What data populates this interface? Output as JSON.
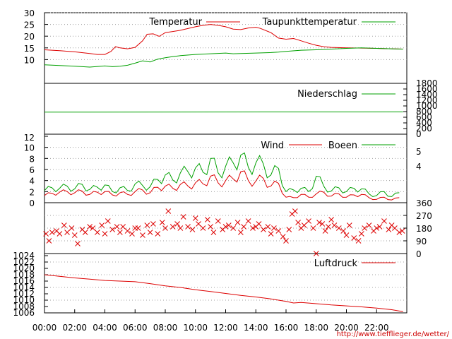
{
  "credit": "http://www.tiefflieger.de/wetter/",
  "time_labels": [
    "00:00",
    "02:00",
    "04:00",
    "06:00",
    "08:00",
    "10:00",
    "12:00",
    "14:00",
    "16:00",
    "18:00",
    "20:00",
    "22:00"
  ],
  "colors": {
    "red": "#dd0000",
    "green": "#00a000",
    "frame": "#000000",
    "grid": "#a0a0a0"
  },
  "chart_data": [
    {
      "id": "temperature",
      "type": "line",
      "x_unit": "hours",
      "ylim": [
        5,
        30
      ],
      "yticks": [
        "10",
        "15",
        "20",
        "25",
        "30"
      ],
      "grid": true,
      "legend_placement": "top",
      "series": [
        {
          "name": "Temperatur",
          "color": "#dd0000",
          "x": [
            0,
            1,
            2,
            3,
            3.5,
            4,
            4.4,
            4.7,
            5,
            5.5,
            6,
            6.5,
            6.8,
            7.2,
            7.6,
            8,
            9,
            10,
            10.5,
            11,
            11.5,
            12,
            12.5,
            13,
            13.5,
            14,
            14.3,
            15,
            15.5,
            16,
            16.5,
            17,
            17.5,
            18,
            18.5,
            19,
            20,
            21,
            22,
            23,
            23.75
          ],
          "y": [
            14.2,
            13.8,
            13.3,
            12.6,
            12.2,
            12.2,
            13.5,
            15.5,
            15.0,
            14.6,
            15.2,
            18.0,
            20.8,
            21.0,
            19.9,
            21.5,
            22.5,
            24.0,
            24.6,
            25.0,
            24.6,
            24.0,
            23.0,
            22.8,
            23.5,
            23.8,
            23.3,
            21.5,
            19.2,
            18.7,
            19.0,
            18.0,
            17.0,
            16.1,
            15.5,
            15.2,
            15.0,
            14.9,
            14.8,
            14.6,
            14.5
          ]
        },
        {
          "name": "Taupunkttemperatur",
          "color": "#00a000",
          "x": [
            0,
            1,
            2,
            3,
            4,
            4.5,
            5,
            5.5,
            6,
            6.5,
            7,
            7.5,
            8,
            8.5,
            9,
            10,
            11,
            12,
            12.5,
            13,
            14,
            15,
            15.5,
            16,
            17,
            18,
            19,
            20,
            21,
            22,
            23,
            23.75
          ],
          "y": [
            7.8,
            7.5,
            7.2,
            6.8,
            7.3,
            7.0,
            7.2,
            7.6,
            8.5,
            9.5,
            9.0,
            10.2,
            10.8,
            11.3,
            11.7,
            12.2,
            12.5,
            12.8,
            12.5,
            12.6,
            12.8,
            13.0,
            13.2,
            13.5,
            14.0,
            14.2,
            14.5,
            14.8,
            15.0,
            14.8,
            14.6,
            14.5
          ]
        }
      ]
    },
    {
      "id": "precipitation",
      "type": "line",
      "x_unit": "hours",
      "ylim": [
        0,
        1800
      ],
      "right_ticks": [
        "0",
        "200",
        "400",
        "600",
        "800",
        "1000",
        "1200",
        "1400",
        "1600",
        "1800"
      ],
      "legend_placement": "top-right",
      "series": [
        {
          "name": "Niederschlag",
          "color": "#00a000",
          "x": [
            0,
            23.75
          ],
          "y": [
            780,
            790
          ]
        }
      ]
    },
    {
      "id": "wind",
      "type": "line",
      "x_unit": "hours",
      "ylim": [
        0,
        12
      ],
      "yticks": [
        "0",
        "2",
        "4",
        "6",
        "8",
        "10",
        "12"
      ],
      "right_ticks": [
        "4",
        "5"
      ],
      "grid": true,
      "legend_placement": "top-right",
      "series": [
        {
          "name": "Wind",
          "color": "#dd0000",
          "x": [
            0,
            0.5,
            1,
            1.5,
            2,
            2.5,
            3,
            3.5,
            4,
            4.5,
            5,
            5.5,
            6,
            6.5,
            7,
            7.5,
            8,
            8.5,
            9,
            9.5,
            10,
            10.5,
            11,
            11.5,
            12,
            12.5,
            13,
            13.5,
            14,
            14.5,
            15,
            15.5,
            16,
            16.5,
            17,
            17.5,
            18,
            18.5,
            19,
            19.5,
            20,
            20.5,
            21,
            21.5,
            22,
            22.5,
            23,
            23.5
          ],
          "y": [
            1.3,
            1.7,
            1.9,
            2.0,
            1.8,
            2.1,
            1.5,
            1.9,
            2.0,
            1.4,
            1.8,
            1.5,
            2.0,
            2.3,
            1.8,
            2.8,
            3.0,
            2.6,
            3.3,
            3.0,
            3.6,
            3.4,
            4.8,
            3.6,
            4.0,
            4.3,
            5.6,
            4.0,
            3.9,
            4.4,
            3.0,
            3.5,
            1.0,
            0.9,
            1.5,
            1.0,
            1.6,
            1.9,
            1.2,
            1.6,
            1.0,
            1.4,
            1.5,
            0.9,
            0.6,
            1.0,
            0.5,
            0.9
          ]
        },
        {
          "name": "Boeen",
          "color": "#00a000",
          "x": [
            0,
            0.5,
            1,
            1.5,
            2,
            2.5,
            3,
            3.5,
            4,
            4.5,
            5,
            5.5,
            6,
            6.5,
            7,
            7.5,
            8,
            8.5,
            9,
            9.5,
            10,
            10.5,
            11,
            11.5,
            12,
            12.5,
            13,
            13.5,
            14,
            14.5,
            15,
            15.5,
            16,
            16.5,
            17,
            17.5,
            18,
            18.5,
            19,
            19.5,
            20,
            20.5,
            21,
            21.5,
            22,
            22.5,
            23,
            23.5
          ],
          "y": [
            2.2,
            2.7,
            2.6,
            3.0,
            2.5,
            3.3,
            2.4,
            2.8,
            3.2,
            2.0,
            2.7,
            2.2,
            3.4,
            3.1,
            2.9,
            4.2,
            5.0,
            4.1,
            5.4,
            5.6,
            6.3,
            5.5,
            8.0,
            5.4,
            6.6,
            7.2,
            8.6,
            6.4,
            7.2,
            7.0,
            5.0,
            6.2,
            2.0,
            2.3,
            2.6,
            2.0,
            4.8,
            3.0,
            2.1,
            2.7,
            2.0,
            2.6,
            2.5,
            1.6,
            1.3,
            2.0,
            1.1,
            1.8
          ]
        }
      ]
    },
    {
      "id": "wind_direction",
      "type": "scatter",
      "x_unit": "hours",
      "ylim": [
        0,
        360
      ],
      "right_ticks": [
        "0",
        "90",
        "180",
        "270",
        "360"
      ],
      "series": [
        {
          "color": "#dd0000",
          "x": [
            0.1,
            0.3,
            0.5,
            0.8,
            1.0,
            1.3,
            1.5,
            1.8,
            2.0,
            2.2,
            2.5,
            2.7,
            3.0,
            3.2,
            3.5,
            3.8,
            4.0,
            4.2,
            4.5,
            4.8,
            5.0,
            5.2,
            5.5,
            5.8,
            6.0,
            6.2,
            6.5,
            6.8,
            7.0,
            7.2,
            7.5,
            7.8,
            8.0,
            8.2,
            8.5,
            8.8,
            9.0,
            9.2,
            9.5,
            9.8,
            10.0,
            10.2,
            10.5,
            10.8,
            11.0,
            11.2,
            11.5,
            11.8,
            12.0,
            12.2,
            12.5,
            12.8,
            13.0,
            13.2,
            13.5,
            13.8,
            14.0,
            14.2,
            14.5,
            14.8,
            15.0,
            15.2,
            15.5,
            15.8,
            16.0,
            16.2,
            16.4,
            16.6,
            16.8,
            17.0,
            17.2,
            17.5,
            17.8,
            18.0,
            18.2,
            18.4,
            18.6,
            18.8,
            19.0,
            19.2,
            19.5,
            19.8,
            20.0,
            20.2,
            20.5,
            20.8,
            21.0,
            21.2,
            21.5,
            21.8,
            22.0,
            22.2,
            22.5,
            22.8,
            23.0,
            23.2,
            23.5,
            23.7
          ],
          "y": [
            140,
            90,
            150,
            160,
            140,
            200,
            150,
            180,
            130,
            70,
            170,
            150,
            190,
            180,
            150,
            200,
            140,
            230,
            170,
            190,
            150,
            190,
            160,
            140,
            180,
            180,
            130,
            200,
            150,
            210,
            140,
            220,
            180,
            300,
            190,
            210,
            180,
            260,
            190,
            170,
            250,
            210,
            180,
            240,
            190,
            150,
            230,
            170,
            190,
            200,
            180,
            220,
            150,
            190,
            230,
            180,
            190,
            210,
            170,
            190,
            140,
            180,
            160,
            120,
            90,
            170,
            280,
            300,
            220,
            180,
            200,
            230,
            180,
            0,
            220,
            210,
            160,
            190,
            240,
            200,
            180,
            160,
            130,
            200,
            110,
            90,
            140,
            180,
            200,
            160,
            180,
            190,
            230,
            170,
            200,
            180,
            150,
            160
          ]
        }
      ]
    },
    {
      "id": "pressure",
      "type": "line",
      "x_unit": "hours",
      "ylim": [
        1006,
        1024
      ],
      "yticks": [
        "1006",
        "1008",
        "1010",
        "1012",
        "1014",
        "1016",
        "1018",
        "1020",
        "1022",
        "1024"
      ],
      "grid": true,
      "legend_placement": "top-right",
      "series": [
        {
          "name": "Luftdruck",
          "color": "#dd0000",
          "x": [
            0,
            1,
            2,
            3,
            4,
            5,
            6,
            7,
            8,
            9,
            10,
            11,
            12,
            13,
            14,
            15,
            16,
            16.5,
            17,
            18,
            19,
            20,
            21,
            22,
            23,
            23.75
          ],
          "y": [
            1018.0,
            1017.5,
            1017.0,
            1016.6,
            1016.2,
            1016.0,
            1015.8,
            1015.2,
            1014.5,
            1014.0,
            1013.3,
            1012.7,
            1012.1,
            1011.5,
            1011.0,
            1010.4,
            1009.6,
            1009.1,
            1009.3,
            1008.9,
            1008.5,
            1008.2,
            1007.9,
            1007.5,
            1007.0,
            1006.4
          ]
        }
      ]
    }
  ]
}
